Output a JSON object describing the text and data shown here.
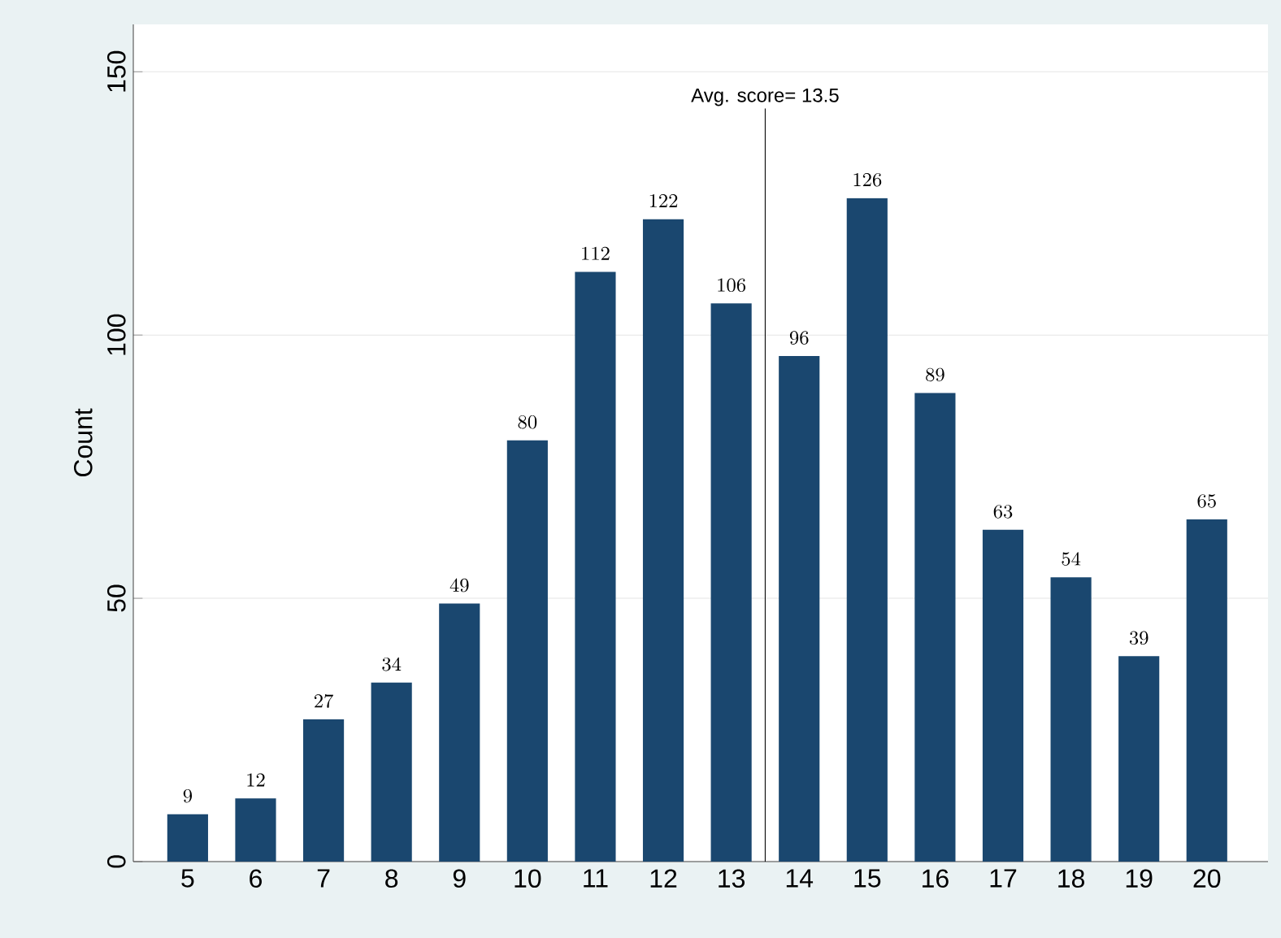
{
  "chart_data": {
    "type": "bar",
    "ylabel": "Count",
    "x": [
      5,
      6,
      7,
      8,
      9,
      10,
      11,
      12,
      13,
      14,
      15,
      16,
      17,
      18,
      19,
      20
    ],
    "values": [
      9,
      12,
      27,
      34,
      49,
      80,
      112,
      122,
      106,
      96,
      126,
      89,
      63,
      54,
      39,
      65
    ],
    "color": "#1a476f",
    "data_labels": true,
    "xlim": [
      4.2,
      20.9
    ],
    "xticks": [
      5,
      6,
      7,
      8,
      9,
      10,
      11,
      12,
      13,
      14,
      15,
      16,
      17,
      18,
      19,
      20
    ],
    "ylim": [
      0,
      159
    ],
    "yticks": [
      0,
      50,
      100,
      150
    ],
    "grid": "y",
    "ref_lines": [
      {
        "axis": "x",
        "value": 13.5,
        "label": "Avg. score= 13.5",
        "color": "#000000"
      }
    ]
  }
}
